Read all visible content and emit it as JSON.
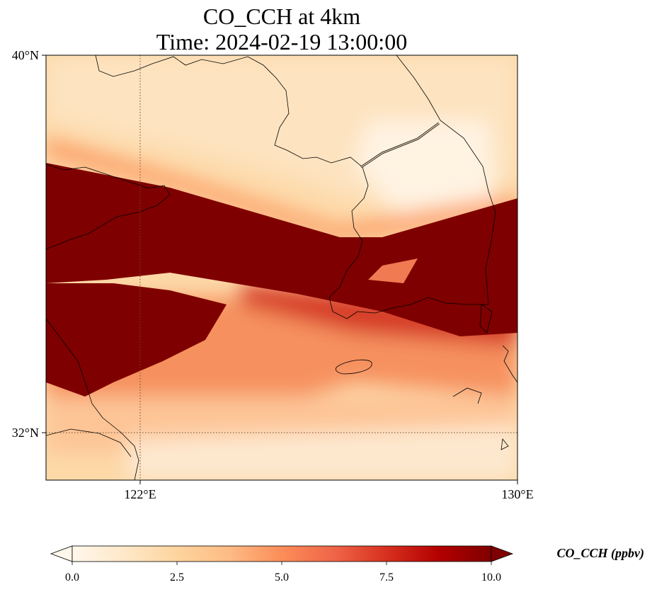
{
  "figure": {
    "title_line1": "CO_CCH at 4km",
    "title_line2": "Time: 2024-02-19 13:00:00"
  },
  "map": {
    "extent": {
      "lon_min": 120,
      "lon_max": 130,
      "lat_min": 31,
      "lat_max": 40
    },
    "gridlines": {
      "lon": [
        122
      ],
      "lat": [
        32
      ],
      "style": "dotted"
    },
    "lat_tick_labels": [
      "40°N",
      "32°N"
    ],
    "lon_tick_labels": [
      "122°E",
      "130°E"
    ],
    "features": [
      "coastlines",
      "china-korea-border"
    ]
  },
  "chart_data": {
    "type": "heatmap",
    "variable": "CO_CCH",
    "units": "ppbv",
    "colormap": "OrRd",
    "clim": [
      0,
      10
    ],
    "extend": "both",
    "colorbar_ticks": [
      "0.0",
      "2.5",
      "5.0",
      "7.5",
      "10.0"
    ],
    "colorbar_label": "CO_CCH (ppbv)",
    "features": [
      {
        "name": "plume-main",
        "value": 10,
        "description": "saturated band from NW China across Yellow Sea to central Korea"
      },
      {
        "name": "plume-south-lobe",
        "value": 10,
        "description": "saturated lobe over east China coast ~33-35N"
      },
      {
        "name": "background-north",
        "value": 2,
        "description": "low values over Bohai / North Korea"
      },
      {
        "name": "background-south",
        "value": 3,
        "description": "moderate values over East China Sea"
      }
    ],
    "colors": {
      "c0": "#fff7ec",
      "c1": "#fee8c8",
      "c2": "#fdd49e",
      "c3": "#fdbb84",
      "c4": "#fc8d59",
      "c5": "#ef6548",
      "c6": "#d7301f",
      "c7": "#b30000",
      "c8": "#7f0000"
    }
  }
}
